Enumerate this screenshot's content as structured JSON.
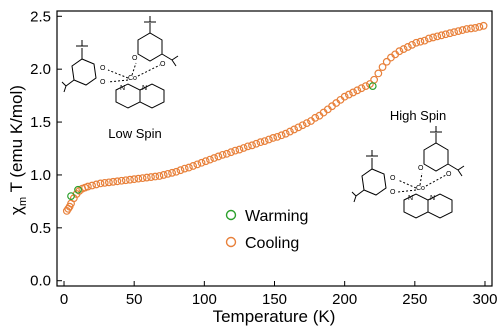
{
  "chart_data": {
    "type": "scatter",
    "xlabel": "Temperature (K)",
    "ylabel_main": "χ",
    "ylabel_sub": "m",
    "ylabel_rest": " T (emu K/mol)",
    "xlim": [
      -5,
      305
    ],
    "ylim": [
      -0.05,
      2.55
    ],
    "x_ticks": [
      0,
      50,
      100,
      150,
      200,
      250,
      300
    ],
    "y_ticks": [
      0.0,
      0.5,
      1.0,
      1.5,
      2.0,
      2.5
    ],
    "y_tick_labels": [
      "0.0",
      "0.5",
      "1.0",
      "1.5",
      "2.0",
      "2.5"
    ],
    "grid": false,
    "legend_position": "lower-center",
    "annotations": {
      "low_spin": "Low Spin",
      "high_spin": "High Spin"
    },
    "series": [
      {
        "name": "Warming",
        "color": "#2ca02c",
        "x": [
          5,
          10,
          220
        ],
        "y": [
          0.8,
          0.86,
          1.84
        ]
      },
      {
        "name": "Cooling",
        "color": "#e8803a",
        "x": [
          2,
          3,
          4,
          5,
          7,
          9,
          11,
          13,
          15,
          17,
          20,
          23,
          26,
          29,
          32,
          35,
          38,
          41,
          44,
          47,
          50,
          53,
          56,
          59,
          62,
          65,
          68,
          71,
          74,
          77,
          80,
          83,
          86,
          89,
          92,
          95,
          98,
          101,
          104,
          107,
          110,
          113,
          116,
          119,
          122,
          125,
          128,
          131,
          134,
          137,
          140,
          143,
          146,
          149,
          152,
          155,
          158,
          161,
          164,
          167,
          170,
          173,
          176,
          179,
          182,
          185,
          188,
          191,
          194,
          197,
          200,
          203,
          206,
          209,
          212,
          215,
          218,
          221,
          224,
          227,
          230,
          233,
          236,
          239,
          242,
          245,
          248,
          251,
          254,
          257,
          260,
          263,
          266,
          269,
          272,
          275,
          278,
          281,
          284,
          287,
          290,
          293,
          296,
          299
        ],
        "y": [
          0.66,
          0.68,
          0.7,
          0.73,
          0.78,
          0.82,
          0.85,
          0.87,
          0.88,
          0.89,
          0.9,
          0.91,
          0.92,
          0.925,
          0.93,
          0.935,
          0.94,
          0.945,
          0.95,
          0.955,
          0.96,
          0.965,
          0.97,
          0.975,
          0.98,
          0.985,
          0.99,
          1.0,
          1.01,
          1.02,
          1.03,
          1.045,
          1.06,
          1.07,
          1.085,
          1.1,
          1.115,
          1.13,
          1.145,
          1.16,
          1.175,
          1.19,
          1.2,
          1.215,
          1.23,
          1.24,
          1.255,
          1.27,
          1.28,
          1.295,
          1.31,
          1.32,
          1.335,
          1.35,
          1.36,
          1.375,
          1.39,
          1.41,
          1.43,
          1.45,
          1.47,
          1.49,
          1.51,
          1.54,
          1.56,
          1.59,
          1.62,
          1.65,
          1.68,
          1.71,
          1.74,
          1.76,
          1.78,
          1.8,
          1.82,
          1.84,
          1.86,
          1.9,
          1.96,
          2.02,
          2.07,
          2.11,
          2.14,
          2.17,
          2.19,
          2.21,
          2.23,
          2.25,
          2.26,
          2.27,
          2.29,
          2.3,
          2.31,
          2.32,
          2.33,
          2.34,
          2.35,
          2.36,
          2.37,
          2.38,
          2.385,
          2.39,
          2.4,
          2.41
        ]
      }
    ]
  }
}
